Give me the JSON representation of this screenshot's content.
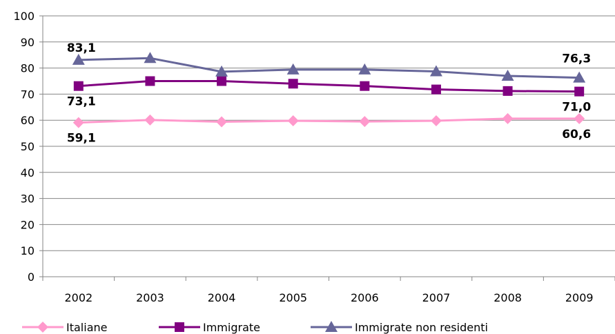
{
  "chart_data": {
    "type": "line",
    "title": "",
    "xlabel": "",
    "ylabel": "",
    "ylim": [
      0,
      100
    ],
    "yticks": [
      0,
      10,
      20,
      30,
      40,
      50,
      60,
      70,
      80,
      90,
      100
    ],
    "categories": [
      "2002",
      "2003",
      "2004",
      "2005",
      "2006",
      "2007",
      "2008",
      "2009"
    ],
    "grid": true,
    "legend_position": "bottom",
    "series": [
      {
        "name": "Italiane",
        "values": [
          59.1,
          60.1,
          59.4,
          59.8,
          59.5,
          59.8,
          60.6,
          60.6
        ],
        "color": "#FF99CC",
        "marker": "diamond",
        "labels": [
          {
            "index": 0,
            "text": "59,1",
            "placement": "below-right"
          },
          {
            "index": 7,
            "text": "60,6",
            "placement": "below-left"
          }
        ]
      },
      {
        "name": "Immigrate",
        "values": [
          73.1,
          75.0,
          75.0,
          74.0,
          73.1,
          71.8,
          71.2,
          71.0
        ],
        "color": "#800080",
        "marker": "square",
        "labels": [
          {
            "index": 0,
            "text": "73,1",
            "placement": "below-right"
          },
          {
            "index": 7,
            "text": "71,0",
            "placement": "below-left"
          }
        ]
      },
      {
        "name": "Immigrate non residenti",
        "values": [
          83.1,
          83.8,
          78.6,
          79.4,
          79.4,
          78.7,
          77.0,
          76.3
        ],
        "color": "#666699",
        "marker": "triangle",
        "labels": [
          {
            "index": 0,
            "text": "83,1",
            "placement": "above-right"
          },
          {
            "index": 7,
            "text": "76,3",
            "placement": "above-left"
          }
        ]
      }
    ]
  }
}
